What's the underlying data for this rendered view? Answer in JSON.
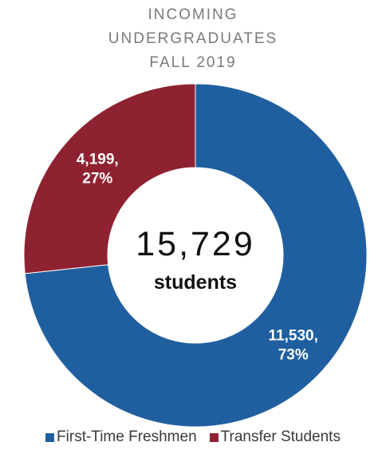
{
  "title_lines": [
    "INCOMING",
    "UNDERGRADUATES",
    "FALL 2019"
  ],
  "center": {
    "total": "15,729",
    "unit": "students"
  },
  "chart_data": {
    "type": "pie",
    "title": "INCOMING UNDERGRADUATES FALL 2019",
    "donut": true,
    "total": 15729,
    "series": [
      {
        "name": "First-Time Freshmen",
        "value": 11530,
        "percent": 73,
        "label_line1": "11,530,",
        "label_line2": "73%",
        "color": "#1f5f9f"
      },
      {
        "name": "Transfer Students",
        "value": 4199,
        "percent": 27,
        "label_line1": "4,199,",
        "label_line2": "27%",
        "color": "#8f2230"
      }
    ],
    "legend_position": "bottom"
  },
  "legend": [
    {
      "label": "First-Time Freshmen",
      "color": "#1f5f9f"
    },
    {
      "label": "Transfer Students",
      "color": "#8f2230"
    }
  ]
}
